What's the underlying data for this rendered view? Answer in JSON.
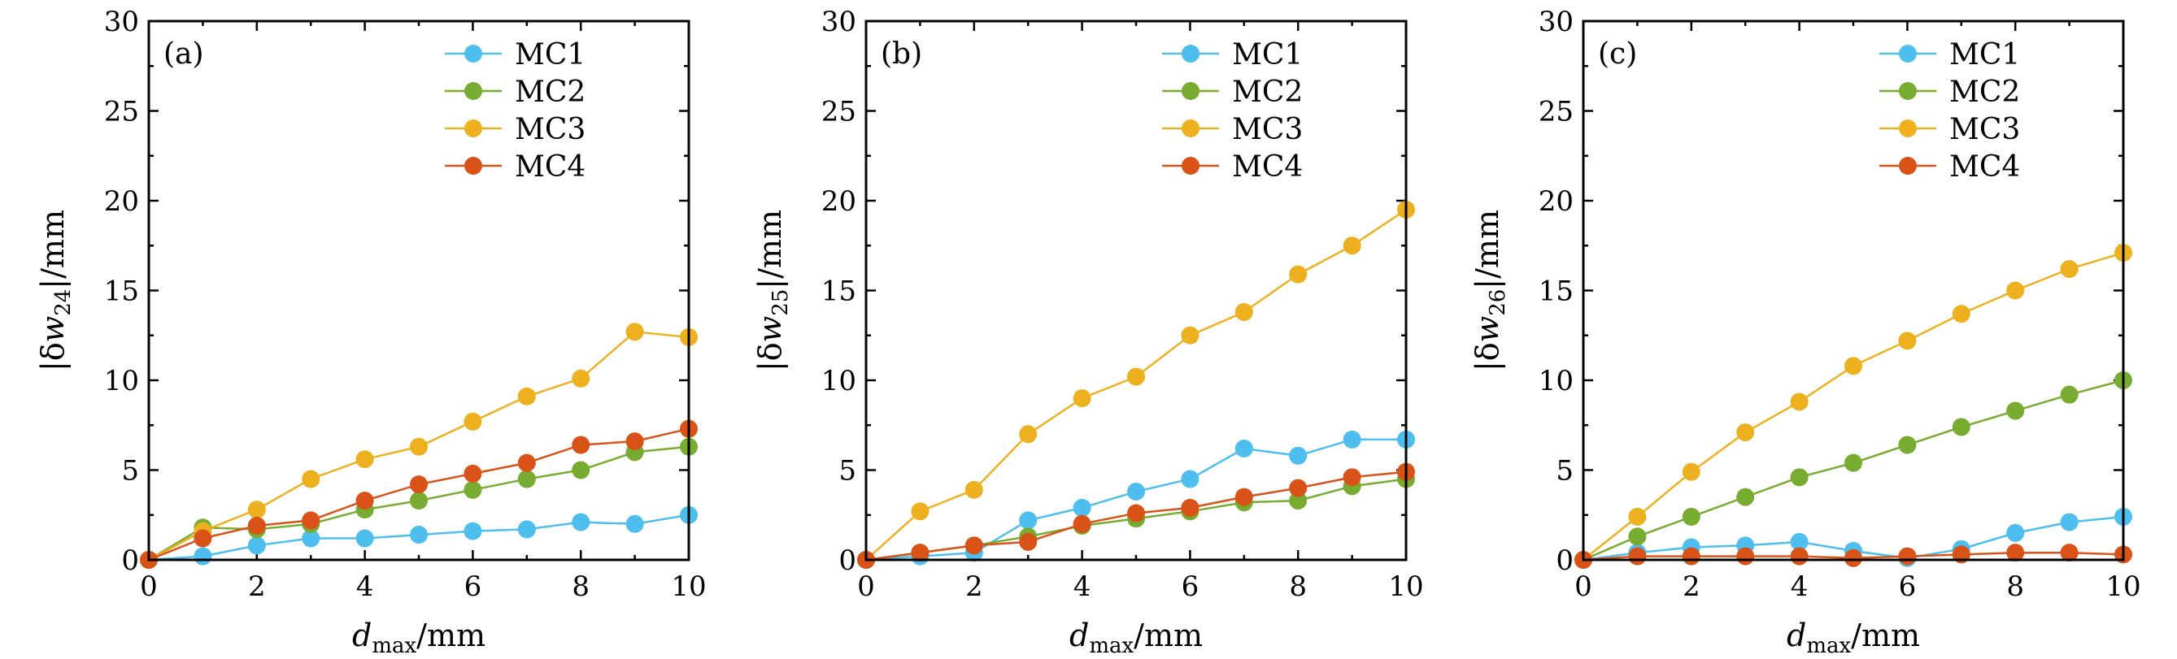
{
  "chart_data": [
    {
      "type": "line",
      "panel_label": "(a)",
      "ylabel": "|δw24|/mm",
      "ylabel_parts": {
        "prefix": "|δ",
        "var": "w",
        "sub": "24",
        "suffix": "|/mm"
      },
      "xlabel": "dmax/mm",
      "xlabel_parts": {
        "var": "d",
        "sub": "max",
        "suffix": "/mm"
      },
      "xlim": [
        0,
        10
      ],
      "ylim": [
        0,
        30
      ],
      "x_ticks": [
        "0",
        "2",
        "4",
        "6",
        "8",
        "10"
      ],
      "y_ticks": [
        "0",
        "5",
        "10",
        "15",
        "20",
        "25",
        "30"
      ],
      "grid": false,
      "legend_position": "top-right",
      "x": [
        0,
        1,
        2,
        3,
        4,
        5,
        6,
        7,
        8,
        9,
        10
      ],
      "series": [
        {
          "name": "MC1",
          "color": "#4DBEEE",
          "values": [
            0,
            0.2,
            0.8,
            1.2,
            1.2,
            1.4,
            1.6,
            1.7,
            2.1,
            2.0,
            2.5
          ]
        },
        {
          "name": "MC2",
          "color": "#77AC30",
          "values": [
            0,
            1.8,
            1.7,
            2.0,
            2.8,
            3.3,
            3.9,
            4.5,
            5.0,
            6.0,
            6.3
          ]
        },
        {
          "name": "MC3",
          "color": "#EDB120",
          "values": [
            0,
            1.6,
            2.8,
            4.5,
            5.6,
            6.3,
            7.7,
            9.1,
            10.1,
            12.7,
            12.4
          ]
        },
        {
          "name": "MC4",
          "color": "#D95319",
          "values": [
            0,
            1.2,
            1.9,
            2.2,
            3.3,
            4.2,
            4.8,
            5.4,
            6.4,
            6.6,
            7.3
          ]
        }
      ]
    },
    {
      "type": "line",
      "panel_label": "(b)",
      "ylabel": "|δw25|/mm",
      "ylabel_parts": {
        "prefix": "|δ",
        "var": "w",
        "sub": "25",
        "suffix": "|/mm"
      },
      "xlabel": "dmax/mm",
      "xlabel_parts": {
        "var": "d",
        "sub": "max",
        "suffix": "/mm"
      },
      "xlim": [
        0,
        10
      ],
      "ylim": [
        0,
        30
      ],
      "x_ticks": [
        "0",
        "2",
        "4",
        "6",
        "8",
        "10"
      ],
      "y_ticks": [
        "0",
        "5",
        "10",
        "15",
        "20",
        "25",
        "30"
      ],
      "grid": false,
      "legend_position": "top-right",
      "x": [
        0,
        1,
        2,
        3,
        4,
        5,
        6,
        7,
        8,
        9,
        10
      ],
      "series": [
        {
          "name": "MC1",
          "color": "#4DBEEE",
          "values": [
            0,
            0.2,
            0.4,
            2.2,
            2.9,
            3.8,
            4.5,
            6.2,
            5.8,
            6.7,
            6.7
          ]
        },
        {
          "name": "MC2",
          "color": "#77AC30",
          "values": [
            0,
            0.4,
            0.8,
            1.3,
            1.9,
            2.3,
            2.7,
            3.2,
            3.3,
            4.1,
            4.5
          ]
        },
        {
          "name": "MC3",
          "color": "#EDB120",
          "values": [
            0,
            2.7,
            3.9,
            7.0,
            9.0,
            10.2,
            12.5,
            13.8,
            15.9,
            17.5,
            19.5
          ]
        },
        {
          "name": "MC4",
          "color": "#D95319",
          "values": [
            0,
            0.4,
            0.8,
            1.0,
            2.0,
            2.6,
            2.9,
            3.5,
            4.0,
            4.6,
            4.9
          ]
        }
      ]
    },
    {
      "type": "line",
      "panel_label": "(c)",
      "ylabel": "|δw26|/mm",
      "ylabel_parts": {
        "prefix": "|δ",
        "var": "w",
        "sub": "26",
        "suffix": "|/mm"
      },
      "xlabel": "dmax/mm",
      "xlabel_parts": {
        "var": "d",
        "sub": "max",
        "suffix": "/mm"
      },
      "xlim": [
        0,
        10
      ],
      "ylim": [
        0,
        30
      ],
      "x_ticks": [
        "0",
        "2",
        "4",
        "6",
        "8",
        "10"
      ],
      "y_ticks": [
        "0",
        "5",
        "10",
        "15",
        "20",
        "25",
        "30"
      ],
      "grid": false,
      "legend_position": "top-right",
      "x": [
        0,
        1,
        2,
        3,
        4,
        5,
        6,
        7,
        8,
        9,
        10
      ],
      "series": [
        {
          "name": "MC1",
          "color": "#4DBEEE",
          "values": [
            0,
            0.4,
            0.7,
            0.8,
            1.0,
            0.5,
            0.1,
            0.6,
            1.5,
            2.1,
            2.4
          ]
        },
        {
          "name": "MC2",
          "color": "#77AC30",
          "values": [
            0,
            1.3,
            2.4,
            3.5,
            4.6,
            5.4,
            6.4,
            7.4,
            8.3,
            9.2,
            10.0
          ]
        },
        {
          "name": "MC3",
          "color": "#EDB120",
          "values": [
            0,
            2.4,
            4.9,
            7.1,
            8.8,
            10.8,
            12.2,
            13.7,
            15.0,
            16.2,
            17.1
          ]
        },
        {
          "name": "MC4",
          "color": "#D95319",
          "values": [
            0,
            0.2,
            0.2,
            0.2,
            0.2,
            0.1,
            0.2,
            0.3,
            0.4,
            0.4,
            0.3
          ]
        }
      ]
    }
  ]
}
